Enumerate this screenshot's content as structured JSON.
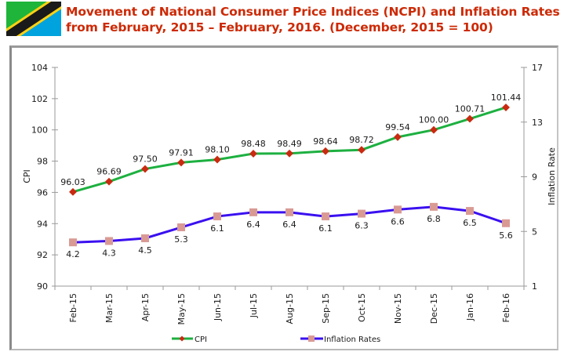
{
  "header": {
    "title_line1": "Movement of National Consumer Price Indices (NCPI) and Inflation Rates",
    "title_line2": "from February, 2015 – February, 2016. (December, 2015 = 100)",
    "flag_icon": "tanzania-flag-icon"
  },
  "colors": {
    "title": "#cc2a06",
    "cpi_line": "#1db040",
    "cpi_marker": "#c92a10",
    "inflation_line": "#3a10f0",
    "inflation_marker": "#d99a94",
    "axis": "#9a9a9a"
  },
  "chart_data": {
    "type": "line",
    "title": "Movement of National Consumer Price Indices (NCPI) and Inflation Rates from February, 2015 – February, 2016. (December, 2015 = 100)",
    "categories": [
      "Feb-15",
      "Mar-15",
      "Apr-15",
      "May-15",
      "Jun-15",
      "Jul-15",
      "Aug-15",
      "Sep-15",
      "Oct-15",
      "Nov-15",
      "Dec-15",
      "Jan-16",
      "Feb-16"
    ],
    "series": [
      {
        "name": "CPI",
        "axis": "left",
        "values": [
          96.03,
          96.69,
          97.5,
          97.91,
          98.1,
          98.48,
          98.49,
          98.64,
          98.72,
          99.54,
          100.0,
          100.71,
          101.44
        ],
        "labels": [
          "96.03",
          "96.69",
          "97.50",
          "97.91",
          "98.10",
          "98.48",
          "98.49",
          "98.64",
          "98.72",
          "99.54",
          "100.00",
          "100.71",
          "101.44"
        ],
        "marker": "diamond"
      },
      {
        "name": "Inflation Rates",
        "axis": "right",
        "values": [
          4.2,
          4.3,
          4.5,
          5.3,
          6.1,
          6.4,
          6.4,
          6.1,
          6.3,
          6.6,
          6.8,
          6.5,
          5.6
        ],
        "labels": [
          "4.2",
          "4.3",
          "4.5",
          "5.3",
          "6.1",
          "6.4",
          "6.4",
          "6.1",
          "6.3",
          "6.6",
          "6.8",
          "6.5",
          "5.6"
        ],
        "marker": "square"
      }
    ],
    "ylabel": "CPI",
    "y2label": "Inflation Rate",
    "xlabel": "",
    "ylim": [
      90,
      104
    ],
    "yticks": [
      "90",
      "92",
      "94",
      "96",
      "98",
      "100",
      "102",
      "104"
    ],
    "y2lim": [
      1,
      17
    ],
    "y2ticks": [
      "1",
      "5",
      "9",
      "13",
      "17"
    ],
    "grid": false,
    "legend_position": "bottom",
    "legend": [
      "CPI",
      "Inflation Rates"
    ]
  }
}
